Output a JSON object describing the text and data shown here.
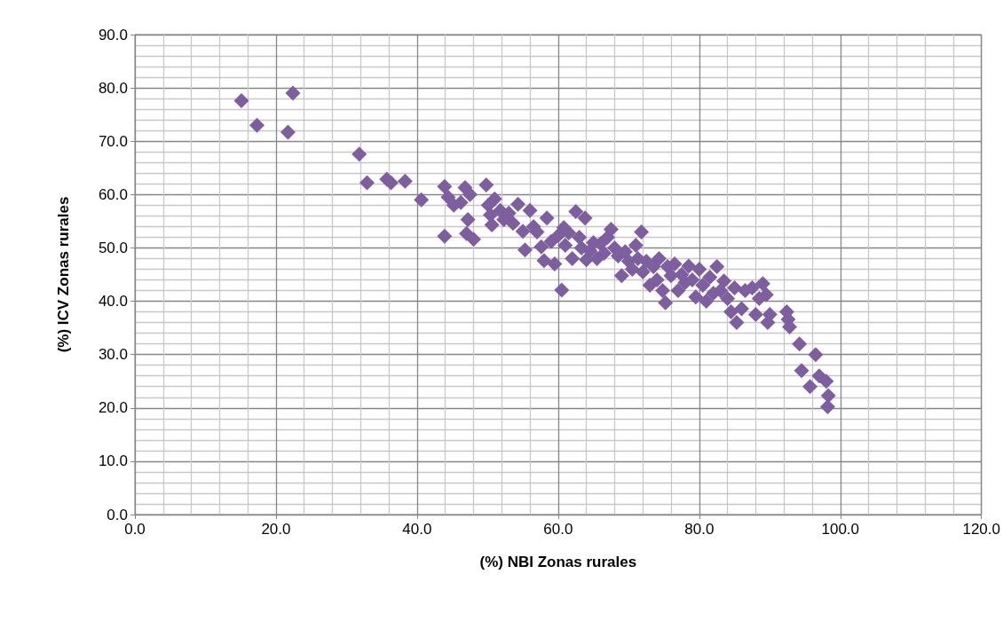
{
  "chart_data": {
    "type": "scatter",
    "xlabel": "(%) NBI Zonas rurales",
    "ylabel": "(%) ICV Zonas rurales",
    "marker": "diamond",
    "grid": true,
    "xlim": [
      0,
      120
    ],
    "ylim": [
      0,
      90
    ],
    "xticks": [
      {
        "value": 0,
        "label": "0.0"
      },
      {
        "value": 20,
        "label": "20.0"
      },
      {
        "value": 40,
        "label": "40.0"
      },
      {
        "value": 60,
        "label": "60.0"
      },
      {
        "value": 80,
        "label": "80.0"
      },
      {
        "value": 100,
        "label": "100.0"
      },
      {
        "value": 120,
        "label": "120.0"
      }
    ],
    "yticks": [
      {
        "value": 0,
        "label": "0.0"
      },
      {
        "value": 10,
        "label": "10.0"
      },
      {
        "value": 20,
        "label": "20.0"
      },
      {
        "value": 30,
        "label": "30.0"
      },
      {
        "value": 40,
        "label": "40.0"
      },
      {
        "value": 50,
        "label": "50.0"
      },
      {
        "value": 60,
        "label": "60.0"
      },
      {
        "value": 70,
        "label": "70.0"
      },
      {
        "value": 80,
        "label": "80.0"
      },
      {
        "value": 90,
        "label": "90.0"
      }
    ],
    "series": [
      {
        "color": "#7d5fa0",
        "x": [
          15.1,
          17.3,
          21.7,
          22.4,
          31.8,
          32.9,
          35.7,
          36.3,
          38.3,
          40.6,
          43.9,
          43.9,
          44.4,
          45.2,
          46.2,
          46.8,
          47.0,
          47.2,
          47.5,
          48.0,
          49.8,
          50.1,
          50.4,
          50.6,
          51.0,
          51.8,
          52.3,
          53.0,
          53.6,
          54.3,
          55.0,
          55.3,
          56.0,
          56.5,
          57.0,
          57.6,
          58.0,
          58.4,
          59.0,
          59.5,
          60.0,
          60.5,
          60.8,
          61.0,
          61.5,
          62.0,
          62.5,
          63.0,
          63.3,
          63.8,
          64.0,
          64.5,
          65.0,
          65.5,
          66.0,
          66.5,
          67.0,
          67.5,
          68.0,
          68.5,
          69.0,
          69.5,
          70.0,
          70.5,
          71.0,
          71.3,
          71.8,
          72.0,
          72.5,
          73.0,
          73.5,
          74.0,
          74.3,
          74.8,
          75.2,
          75.5,
          76.0,
          76.5,
          77.0,
          77.5,
          78.0,
          78.5,
          79.0,
          79.5,
          80.0,
          80.5,
          81.0,
          81.5,
          82.0,
          82.5,
          83.0,
          83.5,
          84.0,
          84.5,
          85.0,
          85.3,
          86.0,
          86.5,
          87.5,
          88.0,
          88.5,
          89.0,
          89.5,
          89.7,
          90.0,
          92.4,
          92.6,
          92.8,
          94.2,
          94.5,
          95.7,
          96.5,
          97.0,
          98.0,
          98.3,
          98.2
        ],
        "values": [
          77.6,
          73.0,
          71.7,
          79.0,
          67.6,
          62.2,
          62.9,
          62.2,
          62.5,
          59.0,
          61.5,
          52.2,
          59.5,
          58.0,
          58.5,
          61.3,
          52.7,
          55.3,
          60.0,
          51.6,
          61.8,
          58.0,
          56.2,
          54.3,
          59.2,
          57.0,
          55.3,
          56.5,
          54.6,
          58.2,
          53.1,
          49.6,
          57.0,
          54.0,
          53.0,
          50.2,
          47.6,
          55.6,
          51.2,
          47.0,
          52.3,
          42.1,
          53.8,
          50.5,
          52.8,
          48.0,
          56.8,
          52.0,
          50.0,
          55.6,
          47.8,
          49.5,
          51.0,
          48.0,
          50.8,
          49.0,
          52.0,
          53.5,
          50.0,
          48.5,
          44.8,
          49.3,
          47.5,
          46.0,
          50.5,
          48.0,
          53.0,
          45.5,
          47.5,
          43.0,
          46.5,
          44.0,
          48.0,
          42.0,
          39.7,
          46.5,
          44.8,
          47.0,
          42.0,
          45.0,
          43.5,
          46.6,
          44.0,
          40.8,
          46.0,
          43.0,
          40.0,
          44.5,
          41.5,
          46.5,
          42.0,
          43.8,
          40.5,
          38.0,
          42.5,
          36.0,
          38.6,
          42.0,
          42.5,
          37.5,
          40.5,
          43.3,
          41.2,
          36.0,
          37.5,
          38.0,
          36.6,
          35.2,
          32.0,
          27.0,
          24.0,
          30.0,
          26.0,
          25.0,
          22.3,
          20.2
        ]
      }
    ]
  }
}
